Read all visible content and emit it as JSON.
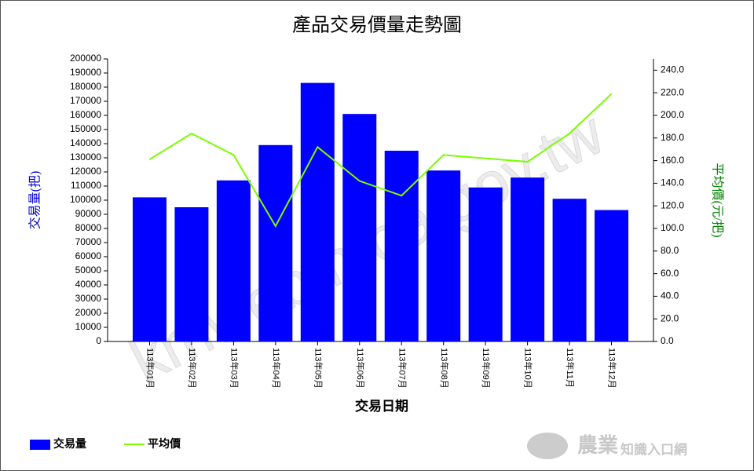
{
  "chart_data": {
    "type": "bar",
    "title": "產品交易價量走勢圖",
    "x_label": "交易日期",
    "y_label": "交易量(把)",
    "y2_label": "平均價(元/把)",
    "watermark": "kmweb.moa.gov.tw",
    "logo": [
      "農業",
      "知識入口網"
    ],
    "categories": [
      "113年01月",
      "113年02月",
      "113年03月",
      "113年04月",
      "113年05月",
      "113年06月",
      "113年07月",
      "113年08月",
      "113年09月",
      "113年10月",
      "113年11月",
      "113年12月"
    ],
    "series": [
      {
        "name": "交易量",
        "type": "bar",
        "color": "#0000ff",
        "values": [
          102000,
          95000,
          114000,
          139000,
          183000,
          161000,
          135000,
          121000,
          109000,
          116000,
          101000,
          93000
        ]
      },
      {
        "name": "平均價",
        "type": "line",
        "axis": "y2",
        "color": "#7cfc00",
        "values": [
          161,
          184,
          165,
          102,
          172,
          142,
          129,
          165,
          162,
          159,
          184,
          219
        ]
      }
    ],
    "ylim": [
      0,
      200000
    ],
    "yticks": [
      0,
      10000,
      20000,
      30000,
      40000,
      50000,
      60000,
      70000,
      80000,
      90000,
      100000,
      110000,
      120000,
      130000,
      140000,
      150000,
      160000,
      170000,
      180000,
      190000,
      200000
    ],
    "y2lim": [
      0,
      250
    ],
    "y2ticks": [
      {
        "value": 0,
        "label": "0.0"
      },
      {
        "value": 20,
        "label": "20.0"
      },
      {
        "value": 40,
        "label": "40.0"
      },
      {
        "value": 60,
        "label": "60.0"
      },
      {
        "value": 80,
        "label": "80.0"
      },
      {
        "value": 100,
        "label": "100.0"
      },
      {
        "value": 120,
        "label": "120.0"
      },
      {
        "value": 140,
        "label": "140.0"
      },
      {
        "value": 160,
        "label": "160.0"
      },
      {
        "value": 180,
        "label": "180.0"
      },
      {
        "value": 200,
        "label": "200.0"
      },
      {
        "value": 220,
        "label": "220.0"
      },
      {
        "value": 240,
        "label": "240.0"
      }
    ],
    "y_label_color": "#0000cc",
    "y2_label_color": "#008000",
    "legend": "bottom-left"
  }
}
